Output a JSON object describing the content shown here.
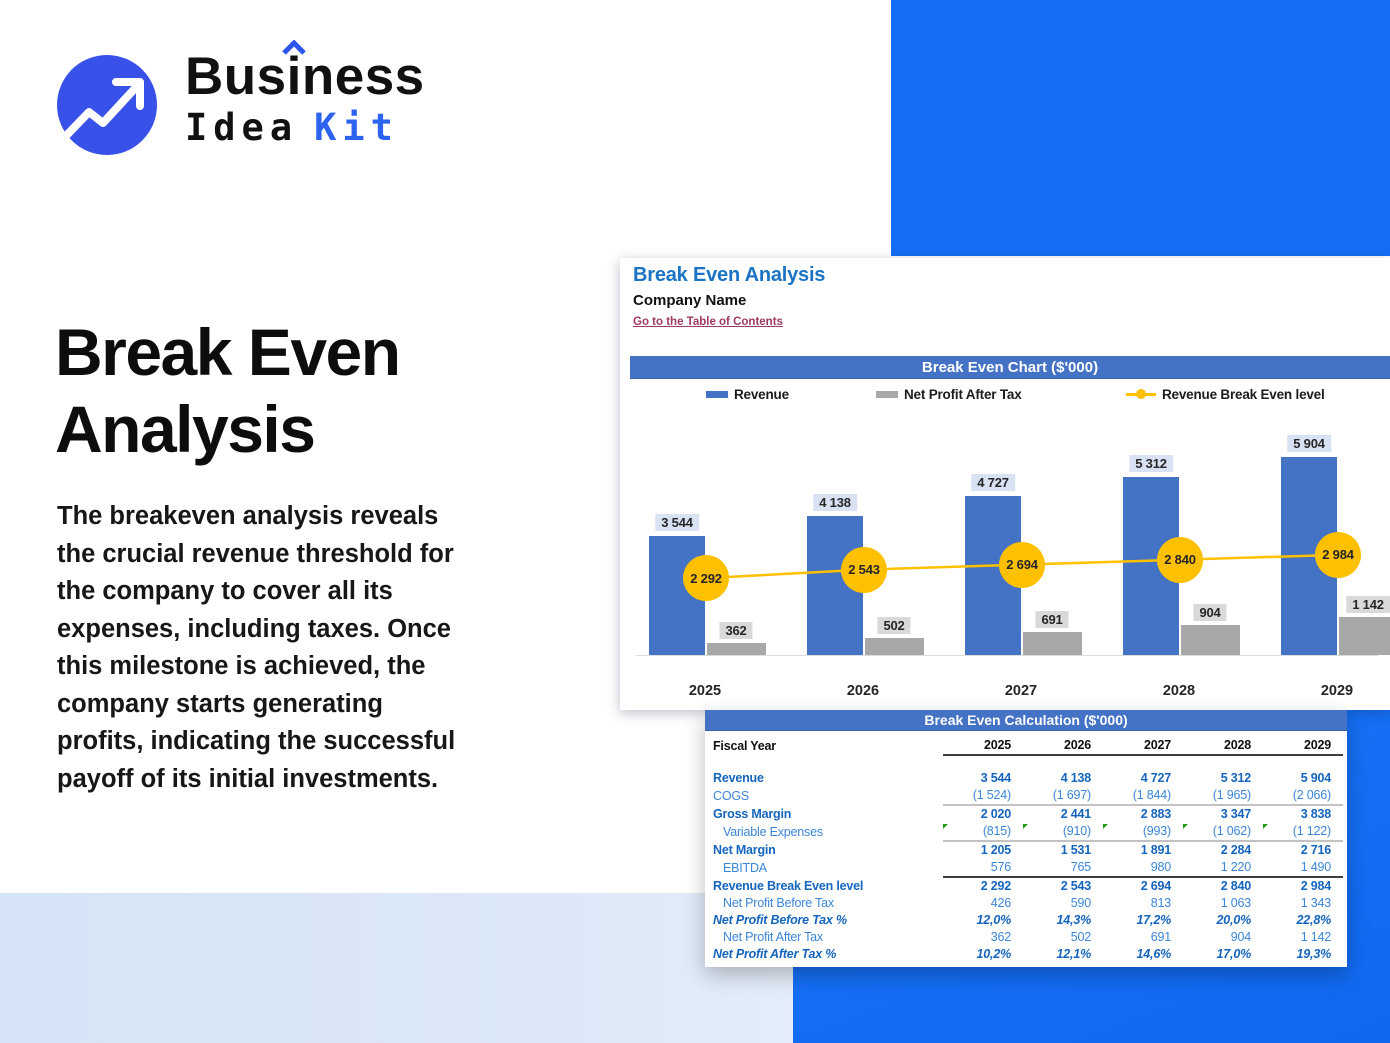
{
  "colors": {
    "background_blue": "#146ef5",
    "background_light_blue": "#dce8f8",
    "excel_header_blue": "#4472c4",
    "revenue_bar_blue": "#4472c4",
    "profit_bar_gray": "#a8a8a8",
    "break_even_yellow": "#ffc000",
    "table_text_blue_bold": "#1565bd",
    "table_text_blue_regular": "#3b86d8",
    "sheet_title_blue": "#1a73c4",
    "toc_link_maroon": "#9c3a5f",
    "logo_circle_blue": "#3851e8",
    "logo_accent_blue": "#2e63f0"
  },
  "logo": {
    "icon": "trend-up-arrow-icon",
    "word_top": "Business",
    "word_bottom": "Idea",
    "word_accent": "Kit"
  },
  "hero": {
    "title": "Break Even\nAnalysis",
    "description": "The breakeven analysis reveals\nthe crucial revenue threshold for\nthe company to cover all its\nexpenses, including taxes. Once\nthis milestone is achieved, the\ncompany starts generating\nprofits, indicating the successful\npayoff of its initial investments."
  },
  "sheet": {
    "title": "Break Even Analysis",
    "company": "Company Name",
    "toc_link": "Go to the Table of Contents",
    "chart_header": "Break Even Chart ($'000)",
    "calc_header": "Break Even Calculation ($'000)",
    "legend": [
      {
        "label": "Revenue",
        "type": "bar",
        "color": "#4472c4"
      },
      {
        "label": "Net Profit After Tax",
        "type": "bar",
        "color": "#a8a8a8"
      },
      {
        "label": "Revenue Break Even level",
        "type": "line",
        "color": "#ffc000"
      }
    ]
  },
  "chart_data": {
    "type": "bar",
    "title": "Break Even Chart ($'000)",
    "categories": [
      "2025",
      "2026",
      "2027",
      "2028",
      "2029"
    ],
    "series": [
      {
        "name": "Revenue",
        "type": "bar",
        "color": "#4472c4",
        "values": [
          3544,
          4138,
          4727,
          5312,
          5904
        ],
        "labels": [
          "3 544",
          "4 138",
          "4 727",
          "5 312",
          "5 904"
        ]
      },
      {
        "name": "Net Profit After Tax",
        "type": "bar",
        "color": "#a8a8a8",
        "values": [
          362,
          502,
          691,
          904,
          1142
        ],
        "labels": [
          "362",
          "502",
          "691",
          "904",
          "1 142"
        ]
      },
      {
        "name": "Revenue Break Even level",
        "type": "line",
        "color": "#ffc000",
        "values": [
          2292,
          2543,
          2694,
          2840,
          2984
        ],
        "labels": [
          "2 292",
          "2 543",
          "2 694",
          "2 840",
          "2 984"
        ]
      }
    ],
    "ylim": [
      0,
      6500
    ],
    "grid": false,
    "legend_position": "top"
  },
  "table": {
    "fiscal_label": "Fiscal Year",
    "years": [
      "2025",
      "2026",
      "2027",
      "2028",
      "2029"
    ],
    "rows": [
      {
        "label": "Revenue",
        "values": [
          "3 544",
          "4 138",
          "4 727",
          "5 312",
          "5 904"
        ],
        "style": "bold"
      },
      {
        "label": "COGS",
        "values": [
          "(1 524)",
          "(1 697)",
          "(1 844)",
          "(1 965)",
          "(2 066)"
        ],
        "style": "normal"
      },
      {
        "label": "Gross Margin",
        "values": [
          "2 020",
          "2 441",
          "2 883",
          "3 347",
          "3 838"
        ],
        "style": "bold",
        "border_top": "gray"
      },
      {
        "label": "Variable Expenses",
        "values": [
          "(815)",
          "(910)",
          "(993)",
          "(1 062)",
          "(1 122)"
        ],
        "style": "normal",
        "indent": true,
        "flags": true
      },
      {
        "label": "Net Margin",
        "values": [
          "1 205",
          "1 531",
          "1 891",
          "2 284",
          "2 716"
        ],
        "style": "bold",
        "border_top": "gray"
      },
      {
        "label": "EBITDA",
        "values": [
          "576",
          "765",
          "980",
          "1 220",
          "1 490"
        ],
        "style": "normal",
        "indent": true
      },
      {
        "label": "Revenue Break Even level",
        "values": [
          "2 292",
          "2 543",
          "2 694",
          "2 840",
          "2 984"
        ],
        "style": "bold",
        "border_top": "dark"
      },
      {
        "label": "Net Profit Before Tax",
        "values": [
          "426",
          "590",
          "813",
          "1 063",
          "1 343"
        ],
        "style": "normal",
        "indent": true
      },
      {
        "label": "Net Profit Before Tax %",
        "values": [
          "12,0%",
          "14,3%",
          "17,2%",
          "20,0%",
          "22,8%"
        ],
        "style": "pct"
      },
      {
        "label": "Net Profit After Tax",
        "values": [
          "362",
          "502",
          "691",
          "904",
          "1 142"
        ],
        "style": "normal",
        "indent": true
      },
      {
        "label": "Net Profit After Tax %",
        "values": [
          "10,2%",
          "12,1%",
          "14,6%",
          "17,0%",
          "19,3%"
        ],
        "style": "pct"
      }
    ]
  }
}
